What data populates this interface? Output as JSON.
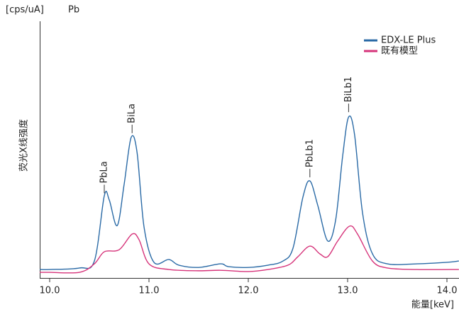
{
  "chart_data": {
    "type": "line",
    "unit_label": "[cps/uA]",
    "element": "Pb",
    "y_label": "荧光X线强度",
    "x_label": "能量[keV]",
    "xlim": [
      9.9,
      14.12
    ],
    "ylim": [
      0,
      100
    ],
    "xticks": [
      {
        "value": 10,
        "label": "10.0"
      },
      {
        "value": 11,
        "label": "11.0"
      },
      {
        "value": 12,
        "label": "12.0"
      },
      {
        "value": 13,
        "label": "13.0"
      },
      {
        "value": 14,
        "label": "14.0"
      }
    ],
    "legend": "top-right",
    "series": [
      {
        "name": "EDX-LE Plus",
        "color": "#2a6aa6",
        "x": [
          9.9,
          10.0,
          10.3,
          10.45,
          10.55,
          10.6,
          10.68,
          10.75,
          10.82,
          10.88,
          10.95,
          11.05,
          11.2,
          11.3,
          11.5,
          11.72,
          11.8,
          12.0,
          12.2,
          12.35,
          12.45,
          12.55,
          12.62,
          12.7,
          12.8,
          12.88,
          12.95,
          13.01,
          13.07,
          13.15,
          13.25,
          13.4,
          13.7,
          14.0,
          14.12
        ],
        "values": [
          3.3,
          3.3,
          3.9,
          6.6,
          32,
          30.4,
          20.4,
          36.5,
          54.7,
          48.9,
          19.9,
          6.1,
          7.2,
          5.0,
          4.1,
          5.5,
          4.4,
          4.1,
          5.0,
          6.6,
          11.6,
          31.5,
          37.8,
          28.2,
          14.4,
          22.7,
          47.5,
          62.7,
          55.8,
          25.4,
          9.4,
          5.5,
          5.5,
          6.1,
          6.6
        ]
      },
      {
        "name": "既有模型",
        "color": "#d6337a",
        "x": [
          9.9,
          10.0,
          10.3,
          10.45,
          10.55,
          10.7,
          10.83,
          10.9,
          11.0,
          11.2,
          11.5,
          11.72,
          12.0,
          12.2,
          12.4,
          12.5,
          12.62,
          12.72,
          12.8,
          12.9,
          13.02,
          13.1,
          13.25,
          13.4,
          13.7,
          14.12
        ],
        "values": [
          2.2,
          2.2,
          2.2,
          5.5,
          10.2,
          11.0,
          17.1,
          14.9,
          5.5,
          3.3,
          2.8,
          3.0,
          2.5,
          3.3,
          5.0,
          8.3,
          12.4,
          9.4,
          8.3,
          14.4,
          20.2,
          17.1,
          6.6,
          3.9,
          3.3,
          3.3
        ]
      }
    ],
    "annotations": [
      {
        "text": "PbLa",
        "x": 10.55,
        "y": 33
      },
      {
        "text": "BiLa",
        "x": 10.83,
        "y": 56.4
      },
      {
        "text": "PbLb1",
        "x": 12.62,
        "y": 39.2
      },
      {
        "text": "BiLb1",
        "x": 13.01,
        "y": 64.6
      }
    ]
  }
}
